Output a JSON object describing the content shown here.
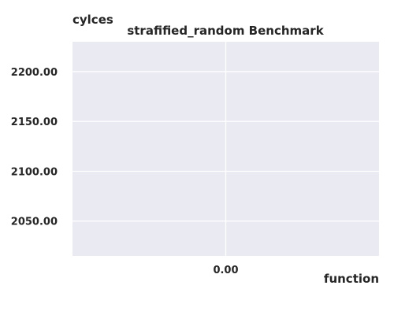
{
  "chart_data": {
    "type": "line",
    "title": "strafified_random Benchmark",
    "xlabel": "function",
    "ylabel": "cylces",
    "x_ticks": [
      0
    ],
    "x_tick_labels": [
      "0.00"
    ],
    "y_ticks": [
      2050,
      2100,
      2150,
      2200
    ],
    "y_tick_labels": [
      "2050.00",
      "2100.00",
      "2150.00",
      "2200.00"
    ],
    "xlim": [
      -0.5,
      0.5
    ],
    "ylim": [
      2015,
      2230
    ],
    "series": [],
    "grid": true,
    "legend": "none",
    "colors": {
      "plot_background": "#eaeaf2",
      "grid": "#ffffff",
      "text": "#262626"
    }
  }
}
